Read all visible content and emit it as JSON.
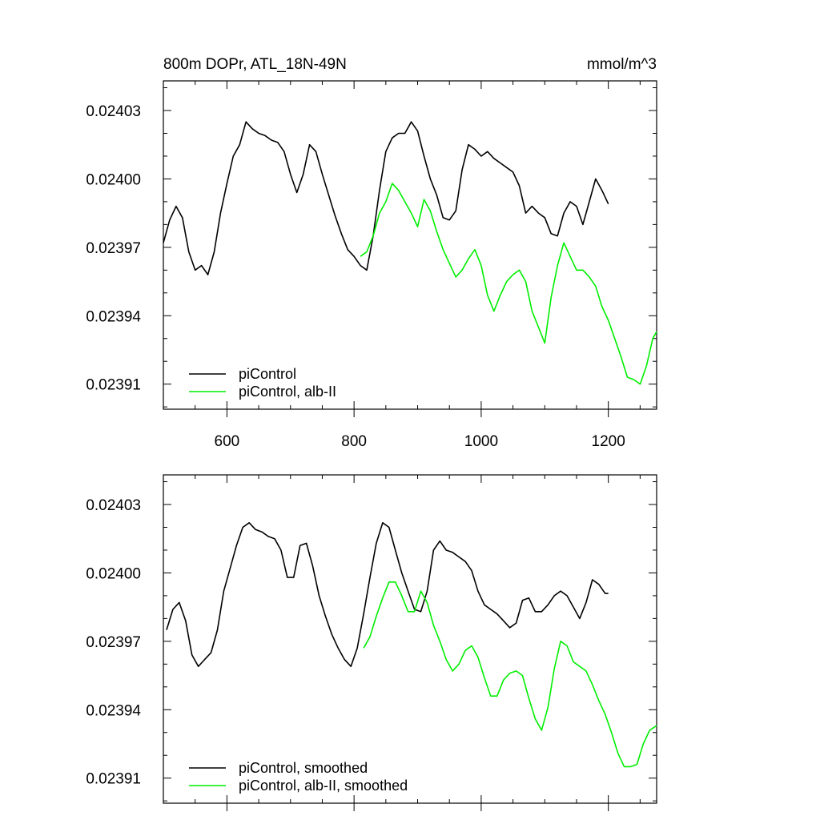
{
  "title_left": "800m DOPr, ATL_18N-49N",
  "title_right": "mmol/m^3",
  "colors": {
    "control": "#000000",
    "albII": "#00ee00"
  },
  "chart_data": [
    {
      "type": "line",
      "panel": "top",
      "xlim": [
        500,
        1276
      ],
      "ylim": [
        0.023899,
        0.024043
      ],
      "xticks": [
        600,
        800,
        1000,
        1200
      ],
      "xtick_labels": [
        "600",
        "800",
        "1000",
        "1200"
      ],
      "yticks": [
        0.02391,
        0.02394,
        0.02397,
        0.024,
        0.02403
      ],
      "ytick_labels": [
        "0.02391",
        "0.02394",
        "0.02397",
        "0.02400",
        "0.02403"
      ],
      "show_xtick_labels": true,
      "legend": [
        "piControl",
        "piControl, alb-II"
      ],
      "legend_position": "bottom-left",
      "series": [
        {
          "name": "piControl",
          "color": "#000000",
          "x": [
            500,
            510,
            520,
            530,
            540,
            550,
            560,
            570,
            580,
            590,
            600,
            610,
            620,
            630,
            640,
            650,
            660,
            670,
            680,
            690,
            700,
            710,
            720,
            730,
            740,
            750,
            760,
            770,
            780,
            790,
            800,
            810,
            820,
            830,
            840,
            850,
            860,
            870,
            880,
            890,
            900,
            910,
            920,
            930,
            940,
            950,
            960,
            970,
            980,
            990,
            1000,
            1010,
            1020,
            1030,
            1040,
            1050,
            1060,
            1070,
            1080,
            1090,
            1100,
            1110,
            1120,
            1130,
            1140,
            1150,
            1160,
            1170,
            1180,
            1190,
            1200
          ],
          "y": [
            0.023972,
            0.023982,
            0.023988,
            0.023983,
            0.023968,
            0.02396,
            0.023962,
            0.023958,
            0.023968,
            0.023985,
            0.023998,
            0.02401,
            0.024015,
            0.024025,
            0.024022,
            0.02402,
            0.024019,
            0.024017,
            0.024016,
            0.024012,
            0.024002,
            0.023994,
            0.024002,
            0.024015,
            0.024012,
            0.024002,
            0.023993,
            0.023984,
            0.023976,
            0.023969,
            0.023966,
            0.023962,
            0.02396,
            0.023975,
            0.023995,
            0.024012,
            0.024018,
            0.02402,
            0.02402,
            0.024025,
            0.024021,
            0.02401,
            0.024,
            0.023993,
            0.023983,
            0.023982,
            0.023986,
            0.024004,
            0.024015,
            0.024013,
            0.02401,
            0.024012,
            0.024009,
            0.024007,
            0.024005,
            0.024003,
            0.023997,
            0.023985,
            0.023988,
            0.023985,
            0.023983,
            0.023976,
            0.023975,
            0.023985,
            0.02399,
            0.023988,
            0.02398,
            0.02399,
            0.024,
            0.023995,
            0.023989
          ]
        },
        {
          "name": "piControl, alb-II",
          "color": "#00ee00",
          "x": [
            810,
            820,
            830,
            840,
            850,
            860,
            870,
            880,
            890,
            900,
            910,
            920,
            930,
            940,
            950,
            960,
            970,
            980,
            990,
            1000,
            1010,
            1020,
            1030,
            1040,
            1050,
            1060,
            1070,
            1080,
            1090,
            1100,
            1110,
            1120,
            1130,
            1140,
            1150,
            1160,
            1170,
            1180,
            1190,
            1200,
            1210,
            1220,
            1230,
            1240,
            1250,
            1260,
            1270,
            1276
          ],
          "y": [
            0.023966,
            0.023968,
            0.023975,
            0.023985,
            0.02399,
            0.023998,
            0.023995,
            0.02399,
            0.023985,
            0.023979,
            0.023991,
            0.023986,
            0.023977,
            0.023969,
            0.023963,
            0.023957,
            0.02396,
            0.023965,
            0.023969,
            0.023962,
            0.023949,
            0.023942,
            0.023949,
            0.023955,
            0.023958,
            0.02396,
            0.023955,
            0.023942,
            0.023935,
            0.023928,
            0.023948,
            0.023962,
            0.023972,
            0.023966,
            0.02396,
            0.02396,
            0.023957,
            0.023953,
            0.023944,
            0.023938,
            0.02393,
            0.023922,
            0.023913,
            0.023912,
            0.02391,
            0.023918,
            0.02393,
            0.023933
          ]
        }
      ]
    },
    {
      "type": "line",
      "panel": "bottom",
      "xlim": [
        500,
        1276
      ],
      "ylim": [
        0.023899,
        0.024043
      ],
      "xticks": [
        600,
        800,
        1000,
        1200
      ],
      "yticks": [
        0.02391,
        0.02394,
        0.02397,
        0.024,
        0.02403
      ],
      "ytick_labels": [
        "0.02391",
        "0.02394",
        "0.02397",
        "0.02400",
        "0.02403"
      ],
      "show_xtick_labels": false,
      "legend": [
        "piControl, smoothed",
        "piControl, alb-II, smoothed"
      ],
      "legend_position": "bottom-left",
      "series": [
        {
          "name": "piControl, smoothed",
          "color": "#000000",
          "x": [
            505,
            515,
            525,
            535,
            545,
            555,
            565,
            575,
            585,
            595,
            605,
            615,
            625,
            635,
            645,
            655,
            665,
            675,
            685,
            695,
            705,
            715,
            725,
            735,
            745,
            755,
            765,
            775,
            785,
            795,
            805,
            815,
            825,
            835,
            845,
            855,
            865,
            875,
            885,
            895,
            905,
            915,
            925,
            935,
            945,
            955,
            965,
            975,
            985,
            995,
            1005,
            1015,
            1025,
            1035,
            1045,
            1055,
            1065,
            1075,
            1085,
            1095,
            1105,
            1115,
            1125,
            1135,
            1145,
            1155,
            1165,
            1175,
            1185,
            1195,
            1200
          ],
          "y": [
            0.023975,
            0.023984,
            0.023987,
            0.023979,
            0.023964,
            0.023959,
            0.023962,
            0.023965,
            0.023975,
            0.023992,
            0.024002,
            0.024012,
            0.02402,
            0.024022,
            0.024019,
            0.024018,
            0.024016,
            0.024015,
            0.02401,
            0.023998,
            0.023998,
            0.024012,
            0.024013,
            0.024003,
            0.02399,
            0.023981,
            0.023973,
            0.023967,
            0.023962,
            0.023959,
            0.023967,
            0.023982,
            0.023998,
            0.024013,
            0.024022,
            0.02402,
            0.02401,
            0.024,
            0.023992,
            0.023984,
            0.023983,
            0.023992,
            0.02401,
            0.024014,
            0.02401,
            0.024009,
            0.024007,
            0.024005,
            0.024001,
            0.023992,
            0.023986,
            0.023984,
            0.023982,
            0.023979,
            0.023976,
            0.023978,
            0.023988,
            0.023989,
            0.023983,
            0.023983,
            0.023986,
            0.02399,
            0.023992,
            0.02399,
            0.023985,
            0.02398,
            0.023987,
            0.023997,
            0.023995,
            0.023991,
            0.023991
          ]
        },
        {
          "name": "piControl, alb-II, smoothed",
          "color": "#00ee00",
          "x": [
            815,
            825,
            835,
            845,
            855,
            865,
            875,
            885,
            895,
            905,
            915,
            925,
            935,
            945,
            955,
            965,
            975,
            985,
            995,
            1005,
            1015,
            1025,
            1035,
            1045,
            1055,
            1065,
            1075,
            1085,
            1095,
            1105,
            1115,
            1125,
            1135,
            1145,
            1155,
            1165,
            1175,
            1185,
            1195,
            1205,
            1215,
            1225,
            1235,
            1245,
            1255,
            1265,
            1276
          ],
          "y": [
            0.023967,
            0.023972,
            0.023981,
            0.023989,
            0.023996,
            0.023996,
            0.02399,
            0.023983,
            0.023983,
            0.023992,
            0.023987,
            0.023977,
            0.02397,
            0.023962,
            0.023957,
            0.02396,
            0.023966,
            0.023968,
            0.023963,
            0.023954,
            0.023946,
            0.023946,
            0.023953,
            0.023956,
            0.023957,
            0.023955,
            0.023945,
            0.023936,
            0.023931,
            0.023941,
            0.023958,
            0.02397,
            0.023968,
            0.023961,
            0.023959,
            0.023957,
            0.023951,
            0.023944,
            0.023938,
            0.02393,
            0.023921,
            0.023915,
            0.023915,
            0.023916,
            0.023925,
            0.023931,
            0.023933
          ]
        }
      ]
    }
  ]
}
